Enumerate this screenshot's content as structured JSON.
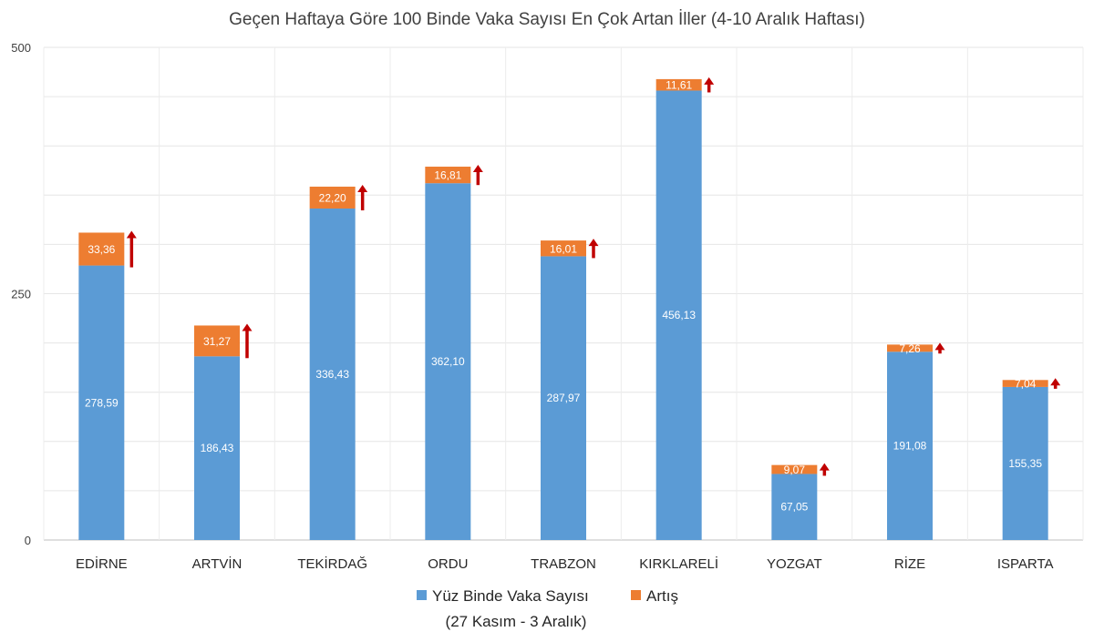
{
  "chart_data": {
    "type": "bar",
    "stacked": true,
    "title": "Geçen Haftaya Göre 100 Binde Vaka Sayısı En Çok Artan İller (4-10 Aralık Haftası)",
    "xlabel": "",
    "ylabel": "",
    "ylim": [
      0,
      500
    ],
    "yticks": [
      "0",
      "250",
      "500"
    ],
    "grid": true,
    "legend_position": "bottom",
    "categories": [
      "EDİRNE",
      "ARTVİN",
      "TEKİRDAĞ",
      "ORDU",
      "TRABZON",
      "KIRKLARELİ",
      "YOZGAT",
      "RİZE",
      "ISPARTA"
    ],
    "series": [
      {
        "name": "Yüz Binde Vaka Sayısı",
        "values": [
          278.59,
          186.43,
          336.43,
          362.1,
          287.97,
          456.13,
          67.05,
          191.08,
          155.35
        ],
        "labels": [
          "278,59",
          "186,43",
          "336,43",
          "362,10",
          "287,97",
          "456,13",
          "67,05",
          "191,08",
          "155,35"
        ],
        "color": "#5b9bd5"
      },
      {
        "name": "Artış",
        "values": [
          33.36,
          31.27,
          22.2,
          16.81,
          16.01,
          11.61,
          9.07,
          7.26,
          7.04
        ],
        "labels": [
          "33,36",
          "31,27",
          "22,20",
          "16,81",
          "16,01",
          "11,61",
          "9,07",
          "7,26",
          "7,04"
        ],
        "color": "#ed7d31"
      }
    ],
    "legend": {
      "entries": [
        "Yüz Binde Vaka Sayısı",
        "Artış"
      ],
      "subtitle": "(27 Kasım - 3 Aralık)"
    },
    "arrow_color": "#c00000"
  }
}
